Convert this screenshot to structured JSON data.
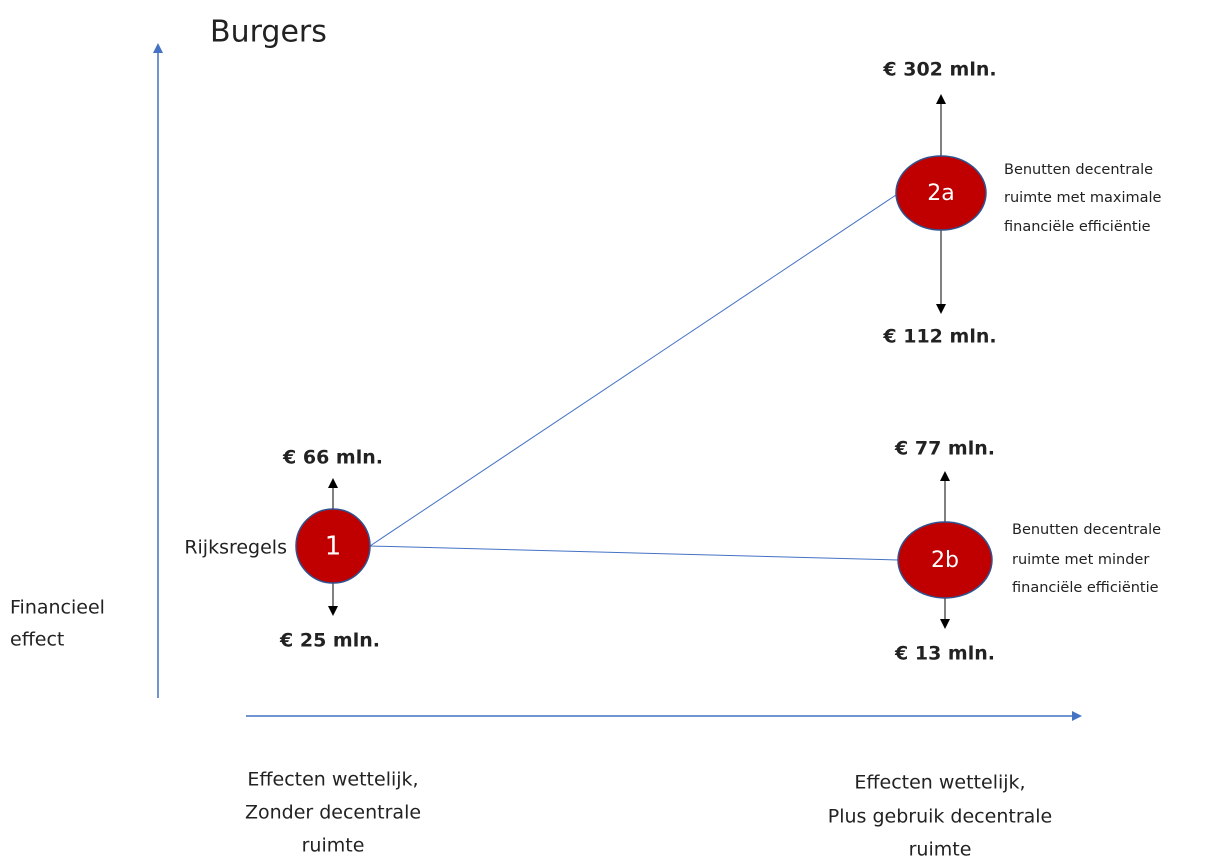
{
  "title": "Burgers",
  "y_axis_label": [
    "Financieel",
    "effect"
  ],
  "x_axis_labels": {
    "left": [
      "Effecten wettelijk,",
      "Zonder decentrale",
      "ruimte"
    ],
    "right": [
      "Effecten wettelijk,",
      "Plus gebruik decentrale",
      "ruimte"
    ]
  },
  "nodes": [
    {
      "id": "1",
      "label": "Rijksregels",
      "upper": "€ 66 mln.",
      "lower": "€ 25 mln."
    },
    {
      "id": "2a",
      "description": [
        "Benutten decentrale",
        "ruimte met maximale",
        "financiële efficiëntie"
      ],
      "upper": "€ 302 mln.",
      "lower": "€ 112 mln."
    },
    {
      "id": "2b",
      "description": [
        "Benutten decentrale",
        "ruimte met minder",
        "financiële efficiëntie"
      ],
      "upper": "€ 77 mln.",
      "lower": "€ 13 mln."
    }
  ]
}
